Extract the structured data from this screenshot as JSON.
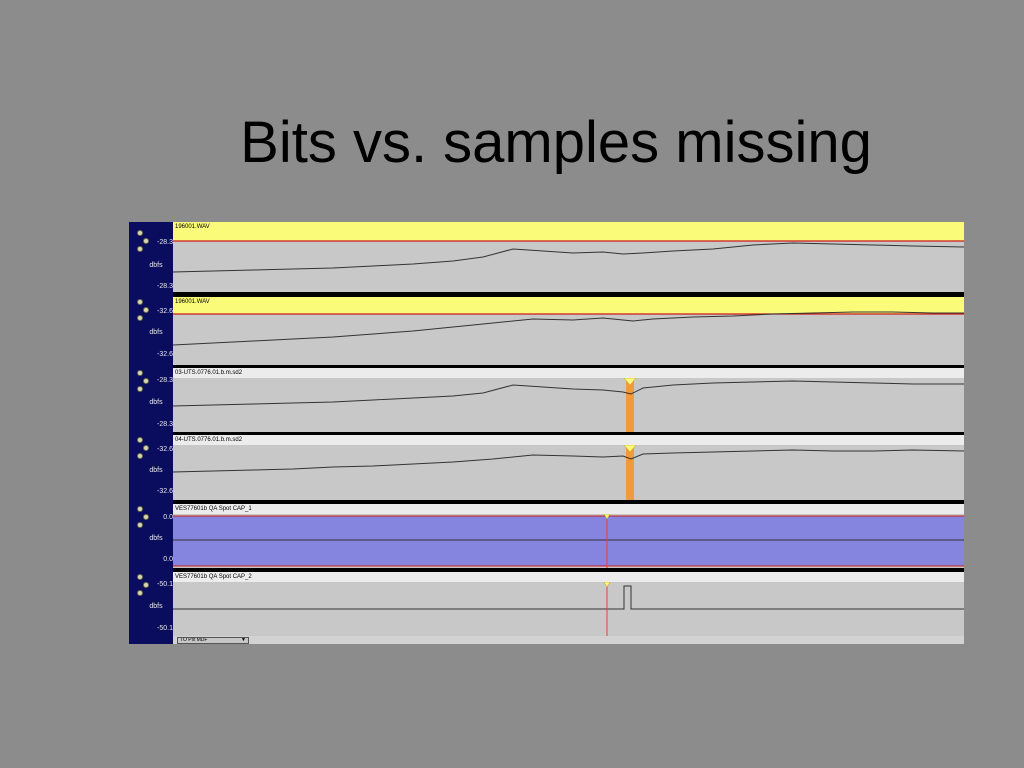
{
  "slide": {
    "title": "Bits vs. samples missing"
  },
  "tracks": [
    {
      "name": "196001.WAV",
      "top_label": "-28.3",
      "unit": "dbfs",
      "bottom_label": "-28.3"
    },
    {
      "name": "196001.WAV",
      "top_label": "-32.6",
      "unit": "dbfs",
      "bottom_label": "-32.6"
    },
    {
      "name": "03-UTS.0776.01.b.m.sd2",
      "top_label": "-28.3",
      "unit": "dbfs",
      "bottom_label": "-28.3"
    },
    {
      "name": "04-UTS.0776.01.b.m.sd2",
      "top_label": "-32.6",
      "unit": "dbfs",
      "bottom_label": "-32.6"
    },
    {
      "name": "VES77601b QA Spot CAP_1",
      "top_label": "0.0",
      "unit": "dbfs",
      "bottom_label": "0.0"
    },
    {
      "name": "VES77601b QA Spot CAP_2",
      "top_label": "-50.1",
      "unit": "dbfs",
      "bottom_label": "-50.1"
    }
  ],
  "zoom": {
    "value": "TO Pix MDF"
  },
  "colors": {
    "header_yellow": "#fbfb7a",
    "header_plain": "#ececec",
    "wave_bg": "#c8c8c8",
    "wave_line": "#333333",
    "clip_red": "#cc1a1a",
    "gap_fill": "#ef9a3c",
    "blue_fill": "#8585e0",
    "cursor": "#e8403a"
  }
}
